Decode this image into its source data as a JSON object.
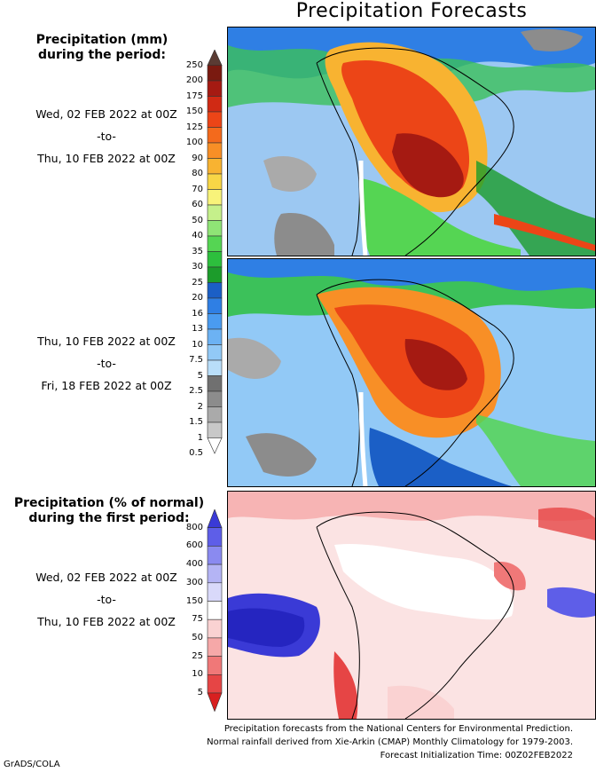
{
  "title": "Precipitation Forecasts",
  "precip_legend": {
    "heading_line1": "Precipitation (mm)",
    "heading_line2": "during the period:",
    "ticks": [
      "250",
      "200",
      "175",
      "150",
      "125",
      "100",
      "90",
      "80",
      "70",
      "60",
      "50",
      "40",
      "35",
      "30",
      "25",
      "20",
      "16",
      "13",
      "10",
      "7.5",
      "5",
      "2.5",
      "2",
      "1.5",
      "1",
      "0.5"
    ],
    "colors": [
      "#5a3b33",
      "#7a1a10",
      "#a51a12",
      "#d02a14",
      "#ec4517",
      "#f46a1c",
      "#f88f26",
      "#f8b331",
      "#f8d646",
      "#f8f37a",
      "#c5f08b",
      "#8fe476",
      "#55d553",
      "#2dbf3d",
      "#1c9c2b",
      "#1b5fc6",
      "#2f7fe4",
      "#4a9bf0",
      "#6cb2f3",
      "#92c9f6",
      "#b9def9",
      "#707070",
      "#8c8c8c",
      "#aaaaaa",
      "#c8c8c8",
      "#ffffff"
    ]
  },
  "periods": {
    "p1_start": "Wed, 02 FEB 2022 at 00Z",
    "p1_sep": "-to-",
    "p1_end": "Thu, 10 FEB 2022 at 00Z",
    "p2_start": "Thu, 10 FEB 2022 at 00Z",
    "p2_sep": "-to-",
    "p2_end": "Fri, 18 FEB 2022 at 00Z",
    "p3_start": "Wed, 02 FEB 2022 at 00Z",
    "p3_sep": "-to-",
    "p3_end": "Thu, 10 FEB 2022 at 00Z"
  },
  "pct_legend": {
    "heading_line1": "Precipitation (% of normal)",
    "heading_line2": "during the first period:",
    "ticks": [
      "800",
      "600",
      "400",
      "300",
      "150",
      "75",
      "50",
      "25",
      "10",
      "5"
    ],
    "colors": [
      "#3a3ad6",
      "#5e5ee8",
      "#8a8af0",
      "#b4b4f5",
      "#d9d9fa",
      "#ffffff",
      "#fad2d2",
      "#f6a8a8",
      "#f07878",
      "#e64545",
      "#d82020"
    ]
  },
  "footer": {
    "line1": "Precipitation forecasts from the National Centers for Environmental Prediction.",
    "line2": "Normal rainfall derived from Xie-Arkin (CMAP) Monthly Climatology for 1979-2003.",
    "line3": "Forecast Initialization Time: 00Z02FEB2022"
  },
  "credit": "GrADS/COLA"
}
